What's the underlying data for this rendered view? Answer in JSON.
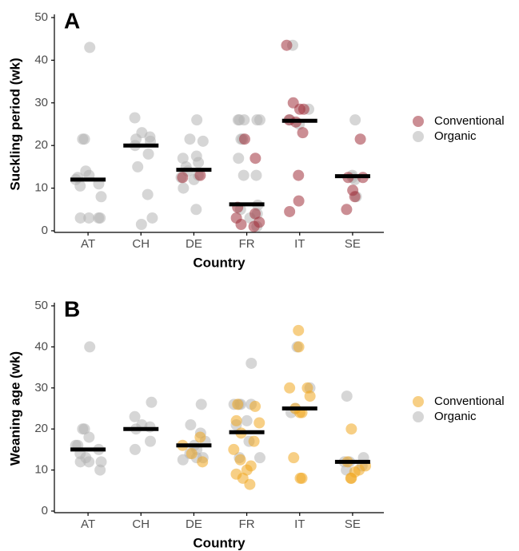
{
  "chart_data": [
    {
      "type": "strip",
      "panel_label": "A",
      "ylabel": "Suckling period (wk)",
      "xlabel": "Country",
      "categories": [
        "AT",
        "CH",
        "DE",
        "FR",
        "IT",
        "SE"
      ],
      "ylim": [
        0,
        50
      ],
      "yticks": [
        0,
        10,
        20,
        30,
        40,
        50
      ],
      "medians": [
        12,
        20,
        14.3,
        6.2,
        25.8,
        12.8
      ],
      "series": [
        {
          "name": "Conventional",
          "color": "#a0323c",
          "x": [
            "DE",
            "DE",
            "FR",
            "FR",
            "FR",
            "FR",
            "FR",
            "FR",
            "FR",
            "FR",
            "IT",
            "IT",
            "IT",
            "IT",
            "IT",
            "IT",
            "IT",
            "IT",
            "IT",
            "IT",
            "SE",
            "SE",
            "SE",
            "SE",
            "SE",
            "SE"
          ],
          "values": [
            13,
            12.5,
            21.5,
            17,
            5.5,
            4,
            3,
            2,
            1.5,
            1,
            43.5,
            30,
            28.5,
            28.5,
            26,
            25.5,
            23,
            13,
            7,
            4.5,
            21.5,
            12.5,
            12.5,
            9.5,
            8,
            5
          ]
        },
        {
          "name": "Organic",
          "color": "#b4b4b4",
          "x": [
            "AT",
            "AT",
            "AT",
            "AT",
            "AT",
            "AT",
            "AT",
            "AT",
            "AT",
            "AT",
            "AT",
            "AT",
            "AT",
            "AT",
            "CH",
            "CH",
            "CH",
            "CH",
            "CH",
            "CH",
            "CH",
            "CH",
            "CH",
            "CH",
            "CH",
            "DE",
            "DE",
            "DE",
            "DE",
            "DE",
            "DE",
            "DE",
            "DE",
            "DE",
            "DE",
            "DE",
            "DE",
            "DE",
            "FR",
            "FR",
            "FR",
            "FR",
            "FR",
            "FR",
            "FR",
            "FR",
            "FR",
            "FR",
            "FR",
            "FR",
            "FR",
            "FR",
            "FR",
            "IT",
            "IT",
            "IT",
            "IT",
            "SE",
            "SE",
            "SE",
            "SE",
            "SE"
          ],
          "values": [
            43,
            21.5,
            21.5,
            13,
            12.5,
            12,
            11,
            10.5,
            14,
            8,
            3,
            3,
            3,
            3,
            26.5,
            23,
            22,
            21.5,
            21,
            20,
            18,
            15,
            8.5,
            3,
            1.5,
            26,
            21.5,
            21,
            17.5,
            17,
            16,
            15,
            14,
            13,
            12.5,
            12,
            10,
            5,
            26,
            26,
            26,
            26,
            26,
            21.5,
            21.5,
            17,
            13,
            13,
            6,
            5,
            4,
            3,
            1,
            43.5,
            28.5,
            26,
            25,
            26,
            13,
            12.5,
            12,
            8
          ]
        }
      ]
    },
    {
      "type": "strip",
      "panel_label": "B",
      "ylabel": "Weaning age (wk)",
      "xlabel": "Country",
      "categories": [
        "AT",
        "CH",
        "DE",
        "FR",
        "IT",
        "SE"
      ],
      "ylim": [
        0,
        50
      ],
      "yticks": [
        0,
        10,
        20,
        30,
        40,
        50
      ],
      "medians": [
        15,
        20,
        16,
        19.2,
        25,
        12
      ],
      "series": [
        {
          "name": "Conventional",
          "color": "#f0a820",
          "x": [
            "DE",
            "DE",
            "DE",
            "DE",
            "FR",
            "FR",
            "FR",
            "FR",
            "FR",
            "FR",
            "FR",
            "FR",
            "FR",
            "FR",
            "FR",
            "FR",
            "FR",
            "IT",
            "IT",
            "IT",
            "IT",
            "IT",
            "IT",
            "IT",
            "IT",
            "IT",
            "IT",
            "IT",
            "SE",
            "SE",
            "SE",
            "SE",
            "SE",
            "SE",
            "SE"
          ],
          "values": [
            18,
            16,
            14,
            12,
            26,
            25.5,
            22,
            21.5,
            19,
            17,
            15,
            12.5,
            11,
            10,
            9,
            8,
            6.5,
            44,
            40,
            30,
            30,
            28,
            25,
            24,
            24,
            13,
            8,
            8,
            20,
            12,
            11,
            10,
            9.5,
            8,
            8
          ]
        },
        {
          "name": "Organic",
          "color": "#b4b4b4",
          "x": [
            "AT",
            "AT",
            "AT",
            "AT",
            "AT",
            "AT",
            "AT",
            "AT",
            "AT",
            "AT",
            "AT",
            "AT",
            "AT",
            "CH",
            "CH",
            "CH",
            "CH",
            "CH",
            "CH",
            "CH",
            "DE",
            "DE",
            "DE",
            "DE",
            "DE",
            "DE",
            "DE",
            "DE",
            "DE",
            "DE",
            "FR",
            "FR",
            "FR",
            "FR",
            "FR",
            "FR",
            "FR",
            "FR",
            "FR",
            "FR",
            "IT",
            "IT",
            "IT",
            "IT",
            "SE",
            "SE",
            "SE",
            "SE",
            "SE",
            "SE"
          ],
          "values": [
            40,
            20,
            20,
            18,
            16,
            16,
            15,
            14,
            13,
            12,
            12,
            12,
            10,
            26.5,
            23,
            21,
            20.5,
            20,
            17,
            15,
            26,
            21,
            19,
            17,
            16,
            15,
            14,
            13,
            13,
            12.5,
            36,
            26,
            26,
            26,
            26,
            22,
            21,
            17,
            13,
            13,
            40,
            30,
            24,
            25,
            28,
            12,
            12,
            11,
            13,
            10
          ]
        }
      ]
    }
  ]
}
